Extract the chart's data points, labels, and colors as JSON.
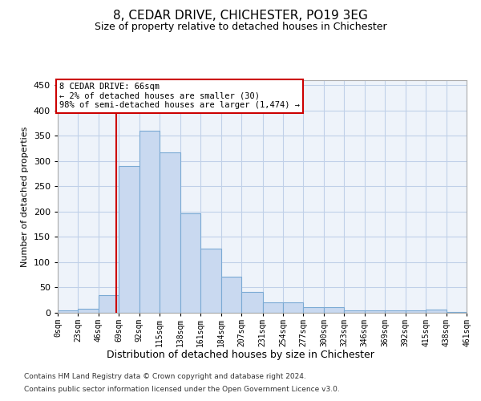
{
  "title": "8, CEDAR DRIVE, CHICHESTER, PO19 3EG",
  "subtitle": "Size of property relative to detached houses in Chichester",
  "xlabel": "Distribution of detached houses by size in Chichester",
  "ylabel": "Number of detached properties",
  "footnote1": "Contains HM Land Registry data © Crown copyright and database right 2024.",
  "footnote2": "Contains public sector information licensed under the Open Government Licence v3.0.",
  "annotation_line1": "8 CEDAR DRIVE: 66sqm",
  "annotation_line2": "← 2% of detached houses are smaller (30)",
  "annotation_line3": "98% of semi-detached houses are larger (1,474) →",
  "property_size": 66,
  "bin_edges": [
    0,
    23,
    46,
    69,
    92,
    115,
    138,
    161,
    184,
    207,
    231,
    254,
    277,
    300,
    323,
    346,
    369,
    392,
    415,
    438,
    461
  ],
  "bar_heights": [
    5,
    8,
    35,
    290,
    360,
    317,
    196,
    127,
    72,
    41,
    21,
    20,
    11,
    11,
    5,
    4,
    4,
    4,
    6,
    2
  ],
  "bar_color": "#c9d9f0",
  "bar_edge_color": "#7baad4",
  "vline_color": "#cc0000",
  "grid_color": "#c0d0e8",
  "annotation_box_color": "#cc0000",
  "ylim": [
    0,
    460
  ],
  "yticks": [
    0,
    50,
    100,
    150,
    200,
    250,
    300,
    350,
    400,
    450
  ],
  "bg_color": "#eef3fa",
  "title_fontsize": 11,
  "subtitle_fontsize": 9
}
